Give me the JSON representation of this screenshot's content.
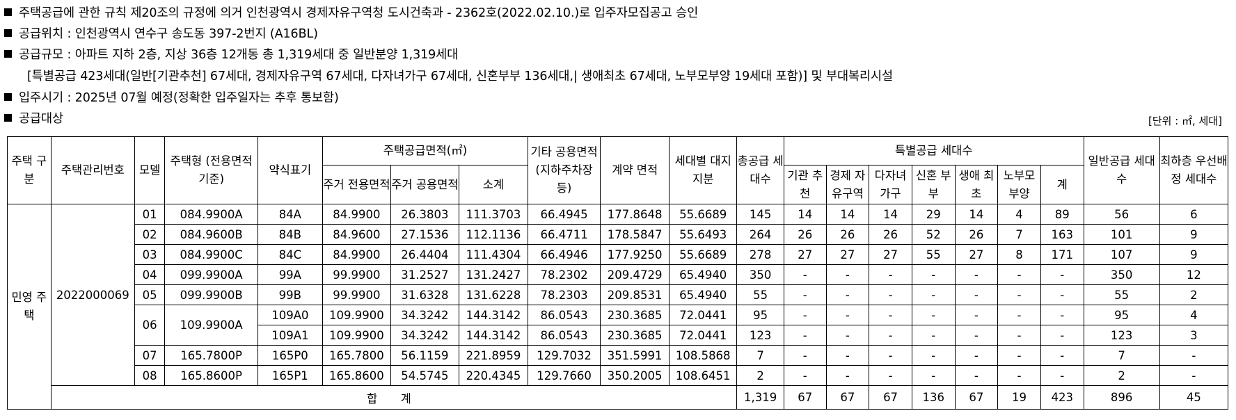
{
  "notes": {
    "line1": "주택공급에 관한 규칙 제20조의 규정에 의거 인천광역시 경제자유구역청 도시건축과 - 2362호(2022.02.10.)로 입주자모집공고 승인",
    "line2": "공급위치 : 인천광역시 연수구 송도동 397-2번지 (A16BL)",
    "line3": "공급규모 : 아파트 지하 2층, 지상 36층 12개동 총 1,319세대 중 일반분양 1,319세대",
    "line3b": "[특별공급 423세대(일반[기관추천] 67세대, 경제자유구역 67세대, 다자녀가구 67세대, 신혼부부 136세대,| 생애최초 67세대, 노부모부양 19세대 포함)] 및 부대복리시설",
    "line4": "입주시기 : 2025년 07월 예정(정확한 입주일자는 추후 통보함)",
    "line5": "공급대상",
    "unit": "[단위 : ㎡, 세대]"
  },
  "table": {
    "headers": {
      "type": "주택 구분",
      "mgmt_no": "주택관리번호",
      "model": "모델",
      "housing_type": "주택형 (전용면적기준)",
      "abbr": "약식표기",
      "area_group": "주택공급면적(㎡)",
      "excl": "주거 전용면적",
      "common": "주거 공용면적",
      "subtotal": "소계",
      "other_common": "기타 공용면적 (지하주차장등)",
      "contract_area": "계약 면적",
      "land_share": "세대별 대지지분",
      "total_units": "총공급 세대수",
      "special_group": "특별공급 세대수",
      "sp_inst": "기관 추천",
      "sp_econ": "경제 자유구역",
      "sp_multi": "다자녀 가구",
      "sp_newlywed": "신혼 부부",
      "sp_first": "생애 최초",
      "sp_elder": "노부모 부양",
      "sp_sum": "계",
      "general": "일반공급 세대수",
      "priority": "최하층 우선배정 세대수"
    },
    "house_type": "민영 주택",
    "mgmt_no": "2022000069",
    "rows": [
      {
        "model": "01",
        "type": "084.9900A",
        "abbr": "84A",
        "excl": "84.9900",
        "common": "26.3803",
        "subtotal": "111.3703",
        "other": "66.4945",
        "contract": "177.8648",
        "land": "55.6689",
        "total": "145",
        "s1": "14",
        "s2": "14",
        "s3": "14",
        "s4": "29",
        "s5": "14",
        "s6": "4",
        "ssum": "89",
        "general": "56",
        "priority": "6"
      },
      {
        "model": "02",
        "type": "084.9600B",
        "abbr": "84B",
        "excl": "84.9600",
        "common": "27.1536",
        "subtotal": "112.1136",
        "other": "66.4711",
        "contract": "178.5847",
        "land": "55.6493",
        "total": "264",
        "s1": "26",
        "s2": "26",
        "s3": "26",
        "s4": "52",
        "s5": "26",
        "s6": "7",
        "ssum": "163",
        "general": "101",
        "priority": "9"
      },
      {
        "model": "03",
        "type": "084.9900C",
        "abbr": "84C",
        "excl": "84.9900",
        "common": "26.4404",
        "subtotal": "111.4304",
        "other": "66.4946",
        "contract": "177.9250",
        "land": "55.6689",
        "total": "278",
        "s1": "27",
        "s2": "27",
        "s3": "27",
        "s4": "55",
        "s5": "27",
        "s6": "8",
        "ssum": "171",
        "general": "107",
        "priority": "9"
      },
      {
        "model": "04",
        "type": "099.9900A",
        "abbr": "99A",
        "excl": "99.9900",
        "common": "31.2527",
        "subtotal": "131.2427",
        "other": "78.2302",
        "contract": "209.4729",
        "land": "65.4940",
        "total": "350",
        "s1": "-",
        "s2": "-",
        "s3": "-",
        "s4": "-",
        "s5": "-",
        "s6": "-",
        "ssum": "-",
        "general": "350",
        "priority": "12"
      },
      {
        "model": "05",
        "type": "099.9900B",
        "abbr": "99B",
        "excl": "99.9900",
        "common": "31.6328",
        "subtotal": "131.6228",
        "other": "78.2303",
        "contract": "209.8531",
        "land": "65.4940",
        "total": "55",
        "s1": "-",
        "s2": "-",
        "s3": "-",
        "s4": "-",
        "s5": "-",
        "s6": "-",
        "ssum": "-",
        "general": "55",
        "priority": "2"
      },
      {
        "model": "06",
        "type": "109.9900A",
        "abbr": "109A0",
        "excl": "109.9900",
        "common": "34.3242",
        "subtotal": "144.3142",
        "other": "86.0543",
        "contract": "230.3685",
        "land": "72.0441",
        "total": "95",
        "s1": "-",
        "s2": "-",
        "s3": "-",
        "s4": "-",
        "s5": "-",
        "s6": "-",
        "ssum": "-",
        "general": "95",
        "priority": "4"
      },
      {
        "model": "",
        "type": "",
        "abbr": "109A1",
        "excl": "109.9900",
        "common": "34.3242",
        "subtotal": "144.3142",
        "other": "86.0543",
        "contract": "230.3685",
        "land": "72.0441",
        "total": "123",
        "s1": "-",
        "s2": "-",
        "s3": "-",
        "s4": "-",
        "s5": "-",
        "s6": "-",
        "ssum": "-",
        "general": "123",
        "priority": "3"
      },
      {
        "model": "07",
        "type": "165.7800P",
        "abbr": "165P0",
        "excl": "165.7800",
        "common": "56.1159",
        "subtotal": "221.8959",
        "other": "129.7032",
        "contract": "351.5991",
        "land": "108.5868",
        "total": "7",
        "s1": "-",
        "s2": "-",
        "s3": "-",
        "s4": "-",
        "s5": "-",
        "s6": "-",
        "ssum": "-",
        "general": "7",
        "priority": "-"
      },
      {
        "model": "08",
        "type": "165.8600P",
        "abbr": "165P1",
        "excl": "165.8600",
        "common": "54.5745",
        "subtotal": "220.4345",
        "other": "129.7660",
        "contract": "350.2005",
        "land": "108.6451",
        "total": "2",
        "s1": "-",
        "s2": "-",
        "s3": "-",
        "s4": "-",
        "s5": "-",
        "s6": "-",
        "ssum": "-",
        "general": "2",
        "priority": "-"
      }
    ],
    "total": {
      "label": "합 계",
      "total": "1,319",
      "s1": "67",
      "s2": "67",
      "s3": "67",
      "s4": "136",
      "s5": "67",
      "s6": "19",
      "ssum": "423",
      "general": "896",
      "priority": "45"
    }
  }
}
